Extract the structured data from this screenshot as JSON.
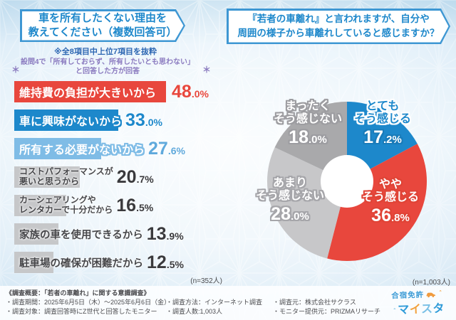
{
  "left": {
    "title_line1": "車を所有したくない理由を",
    "title_line2": "教えてください（複数回答可）",
    "note_excerpt": "※全8項目中上位7項目を抜粋",
    "note_condition_line1": "設問4で「所有しておらず、所有したいとも思わない」",
    "note_condition_line2": "と回答した方が回答",
    "asterisk": "＊",
    "sample": "(n=352人)"
  },
  "right": {
    "title_line1": "『若者の車離れ』と言われますが、自分や",
    "title_line2": "周囲の様子から車離れしていると感じますか？",
    "sample": "(n=1,003人)"
  },
  "chart_data": [
    {
      "type": "bar",
      "title": "車を所有したくない理由を教えてください（複数回答可）",
      "orientation": "horizontal",
      "unit": "%",
      "xlim": [
        0,
        50
      ],
      "categories": [
        "維持費の負担が大きいから",
        "車に興味がないから",
        "所有する必要がないから",
        "コストパフォーマンスが悪いと思うから",
        "カーシェアリングやレンタカーで十分だから",
        "家族の車を使用できるから",
        "駐車場の確保が困難だから"
      ],
      "display_labels": [
        [
          "維持費の負担が大きいから"
        ],
        [
          "車に興味がないから"
        ],
        [
          "所有する必要がないから"
        ],
        [
          "コストパフォーマンスが",
          "悪いと思うから"
        ],
        [
          "カーシェアリングや",
          "レンタカーで十分だから"
        ],
        [
          "家族の車を使用できるから"
        ],
        [
          "駐車場の確保が困難だから"
        ]
      ],
      "values": [
        48.0,
        33.0,
        27.6,
        20.7,
        16.5,
        13.9,
        12.5
      ],
      "bar_colors": [
        "#e8473d",
        "#1d88cb",
        "#7fbce6",
        "#c6c7c9",
        "#c6c7c9",
        "#c6c7c9",
        "#c6c7c9"
      ],
      "value_colors": [
        "#e8473d",
        "#1d88cb",
        "#5fa9dc",
        "#3a3a3d",
        "#3a3a3d",
        "#3a3a3d",
        "#3a3a3d"
      ],
      "sample_size": "(n=352人)",
      "legend": false,
      "grid": false
    },
    {
      "type": "pie",
      "title": "『若者の車離れ』と言われますが、自分や周囲の様子から車離れしていると感じますか？",
      "labels": [
        "とてもそう感じる",
        "ややそう感じる",
        "あまりそう感じない",
        "まったくそう感じない"
      ],
      "display_labels": [
        [
          "とても",
          "そう感じる"
        ],
        [
          "やや",
          "そう感じる"
        ],
        [
          "あまり",
          "そう感じない"
        ],
        [
          "まったく",
          "そう感じない"
        ]
      ],
      "values": [
        17.2,
        36.8,
        28.0,
        18.0
      ],
      "colors": [
        "#1d88cb",
        "#e8473d",
        "#c7c7c9",
        "#a9a9ab"
      ],
      "start_angle_deg": 0,
      "clockwise": true,
      "donut_hole_ratio": 0.33,
      "sample_size": "(n=1,003人)"
    }
  ],
  "footer": {
    "overview": "《調査概要：「若者の車離れ」に関する意識調査》",
    "period": "・調査期間：2025年6月5日（木）〜2025年6月6日（金）",
    "method": "・調査方法：インターネット調査",
    "source": "・調査元：株式会社サクラス",
    "target": "・調査対象：調査回答時にZ世代と回答したモニター",
    "respondents": "・調査人数:1,003人",
    "monitor": "・モニター提供元：PRIZMAリサーチ",
    "logo": {
      "top": "合宿免許",
      "bottom": "マイスター",
      "char_colors": [
        "#2f9bd8",
        "#f2a13c",
        "#7ac0e6",
        "#2f9bd8",
        "#f2a13c"
      ],
      "car_color": "#f09a3e"
    }
  }
}
